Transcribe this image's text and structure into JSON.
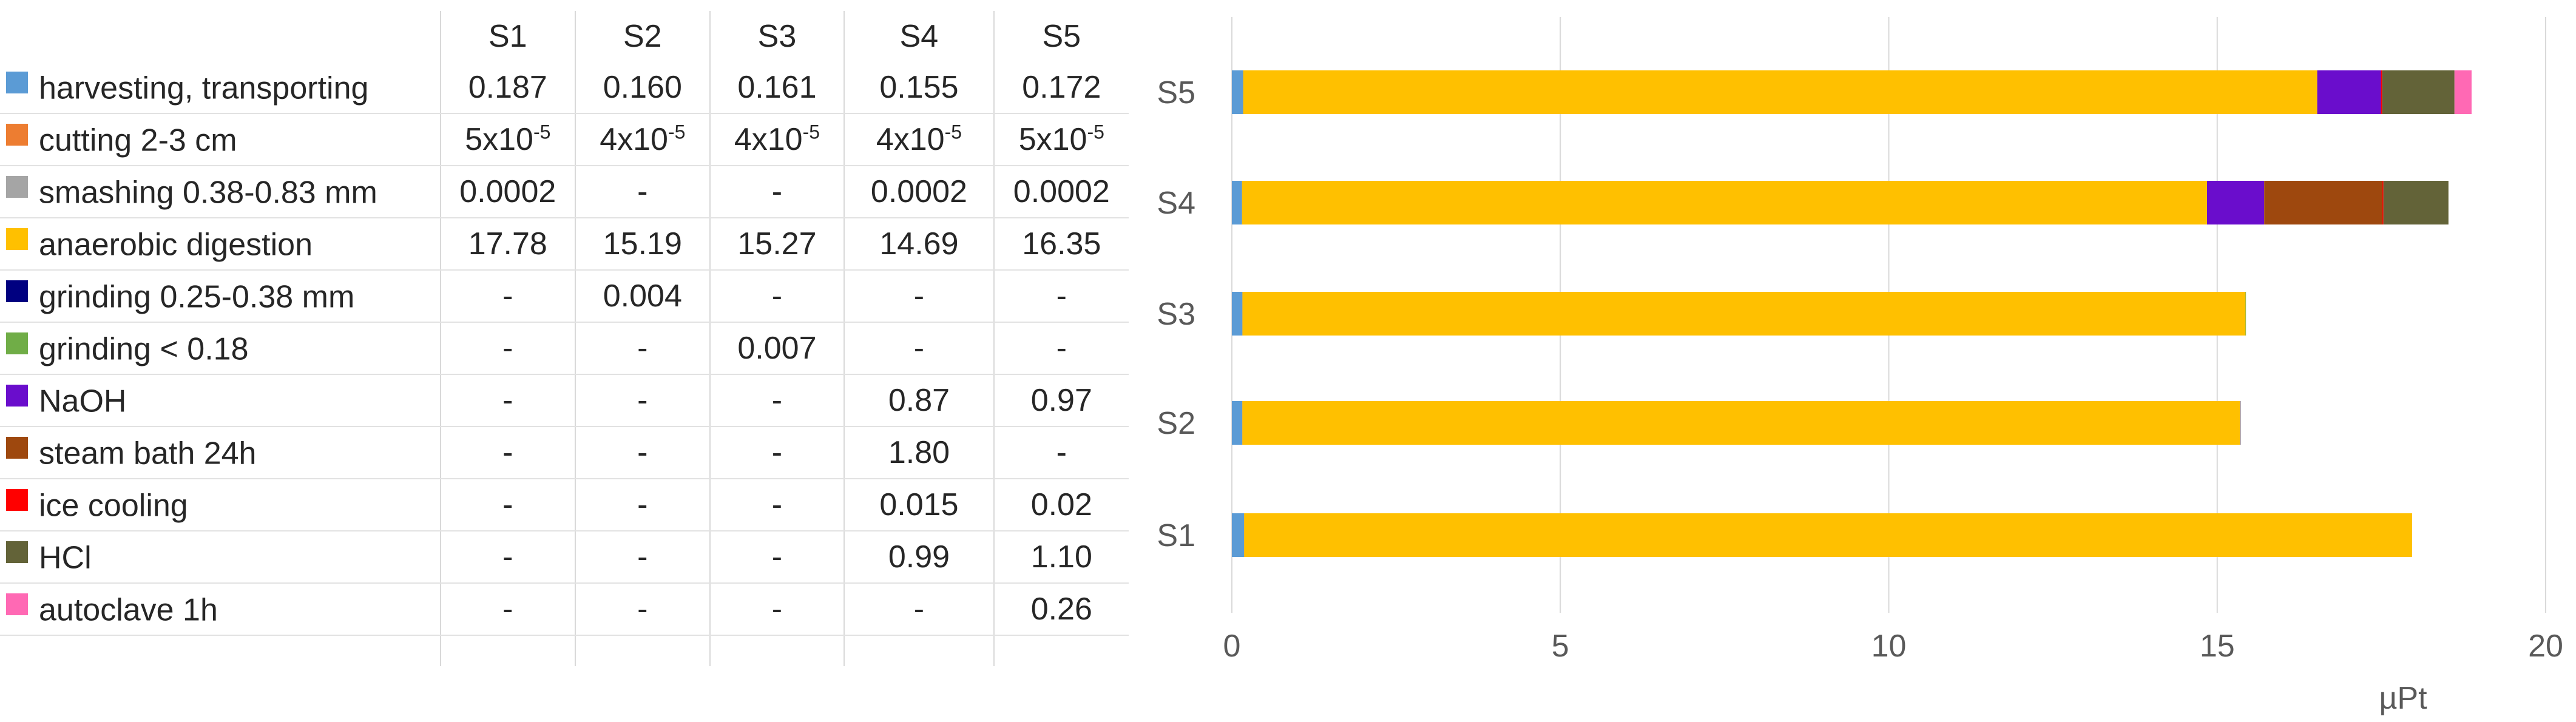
{
  "table": {
    "columns": [
      "S1",
      "S2",
      "S3",
      "S4",
      "S5"
    ],
    "rows": [
      {
        "label": "harvesting, transporting",
        "color": "#5b9bd5",
        "cells": [
          {
            "v": "0.187"
          },
          {
            "v": "0.160"
          },
          {
            "v": "0.161"
          },
          {
            "v": "0.155"
          },
          {
            "v": "0.172"
          }
        ]
      },
      {
        "label": "cutting 2-3 cm",
        "color": "#ed7d31",
        "cells": [
          {
            "v": "5x10",
            "sup": "-5"
          },
          {
            "v": "4x10",
            "sup": "-5"
          },
          {
            "v": "4x10",
            "sup": "-5"
          },
          {
            "v": "4x10",
            "sup": "-5"
          },
          {
            "v": "5x10",
            "sup": "-5"
          }
        ]
      },
      {
        "label": "smashing 0.38-0.83 mm",
        "color": "#a5a5a5",
        "cells": [
          {
            "v": "0.0002"
          },
          {
            "v": "-"
          },
          {
            "v": "-"
          },
          {
            "v": "0.0002"
          },
          {
            "v": "0.0002"
          }
        ]
      },
      {
        "label": "anaerobic digestion",
        "color": "#ffc000",
        "cells": [
          {
            "v": "17.78"
          },
          {
            "v": "15.19"
          },
          {
            "v": "15.27"
          },
          {
            "v": "14.69"
          },
          {
            "v": "16.35"
          }
        ]
      },
      {
        "label": "grinding 0.25-0.38 mm",
        "color": "#000080",
        "cells": [
          {
            "v": "-"
          },
          {
            "v": "0.004"
          },
          {
            "v": "-"
          },
          {
            "v": "-"
          },
          {
            "v": "-"
          }
        ]
      },
      {
        "label": "grinding < 0.18",
        "color": "#70ad47",
        "cells": [
          {
            "v": "-"
          },
          {
            "v": "-"
          },
          {
            "v": "0.007"
          },
          {
            "v": "-"
          },
          {
            "v": "-"
          }
        ]
      },
      {
        "label": "NaOH",
        "color": "#6a0dcc",
        "cells": [
          {
            "v": "-"
          },
          {
            "v": "-"
          },
          {
            "v": "-"
          },
          {
            "v": "0.87"
          },
          {
            "v": "0.97"
          }
        ]
      },
      {
        "label": "steam bath 24h",
        "color": "#9e480e",
        "cells": [
          {
            "v": "-"
          },
          {
            "v": "-"
          },
          {
            "v": "-"
          },
          {
            "v": "1.80"
          },
          {
            "v": "-"
          }
        ]
      },
      {
        "label": "ice cooling",
        "color": "#ff0000",
        "cells": [
          {
            "v": "-"
          },
          {
            "v": "-"
          },
          {
            "v": "-"
          },
          {
            "v": "0.015"
          },
          {
            "v": "0.02"
          }
        ]
      },
      {
        "label": "HCl",
        "color": "#636338",
        "cells": [
          {
            "v": "-"
          },
          {
            "v": "-"
          },
          {
            "v": "-"
          },
          {
            "v": "0.99"
          },
          {
            "v": "1.10"
          }
        ]
      },
      {
        "label": "autoclave 1h",
        "color": "#ff69b4",
        "cells": [
          {
            "v": "-"
          },
          {
            "v": "-"
          },
          {
            "v": "-"
          },
          {
            "v": "-"
          },
          {
            "v": "0.26"
          }
        ]
      }
    ]
  },
  "chart_data": {
    "type": "bar",
    "orientation": "horizontal",
    "stacked": true,
    "categories": [
      "S1",
      "S2",
      "S3",
      "S4",
      "S5"
    ],
    "xlim": [
      0,
      20
    ],
    "x_ticks": [
      0,
      5,
      10,
      15,
      20
    ],
    "unit_label": "µPt",
    "grid": "vertical",
    "legend": "none",
    "series": [
      {
        "name": "harvesting, transporting",
        "color": "#5b9bd5",
        "values": [
          0.187,
          0.16,
          0.161,
          0.155,
          0.172
        ]
      },
      {
        "name": "cutting 2-3 cm",
        "color": "#ed7d31",
        "values": [
          5e-05,
          4e-05,
          4e-05,
          4e-05,
          5e-05
        ]
      },
      {
        "name": "smashing 0.38-0.83 mm",
        "color": "#a5a5a5",
        "values": [
          0.0002,
          0,
          0,
          0.0002,
          0.0002
        ]
      },
      {
        "name": "anaerobic digestion",
        "color": "#ffc000",
        "values": [
          17.78,
          15.19,
          15.27,
          14.69,
          16.35
        ]
      },
      {
        "name": "grinding 0.25-0.38 mm",
        "color": "#000080",
        "values": [
          0,
          0.004,
          0,
          0,
          0
        ]
      },
      {
        "name": "grinding < 0.18",
        "color": "#70ad47",
        "values": [
          0,
          0,
          0.007,
          0,
          0
        ]
      },
      {
        "name": "NaOH",
        "color": "#6a0dcc",
        "values": [
          0,
          0,
          0,
          0.87,
          0.97
        ]
      },
      {
        "name": "steam bath 24h",
        "color": "#9e480e",
        "values": [
          0,
          0,
          0,
          1.8,
          0
        ]
      },
      {
        "name": "ice cooling",
        "color": "#ff0000",
        "values": [
          0,
          0,
          0,
          0.015,
          0.02
        ]
      },
      {
        "name": "HCl",
        "color": "#636338",
        "values": [
          0,
          0,
          0,
          0.99,
          1.1
        ]
      },
      {
        "name": "autoclave 1h",
        "color": "#ff69b4",
        "values": [
          0,
          0,
          0,
          0,
          0.26
        ]
      }
    ]
  }
}
